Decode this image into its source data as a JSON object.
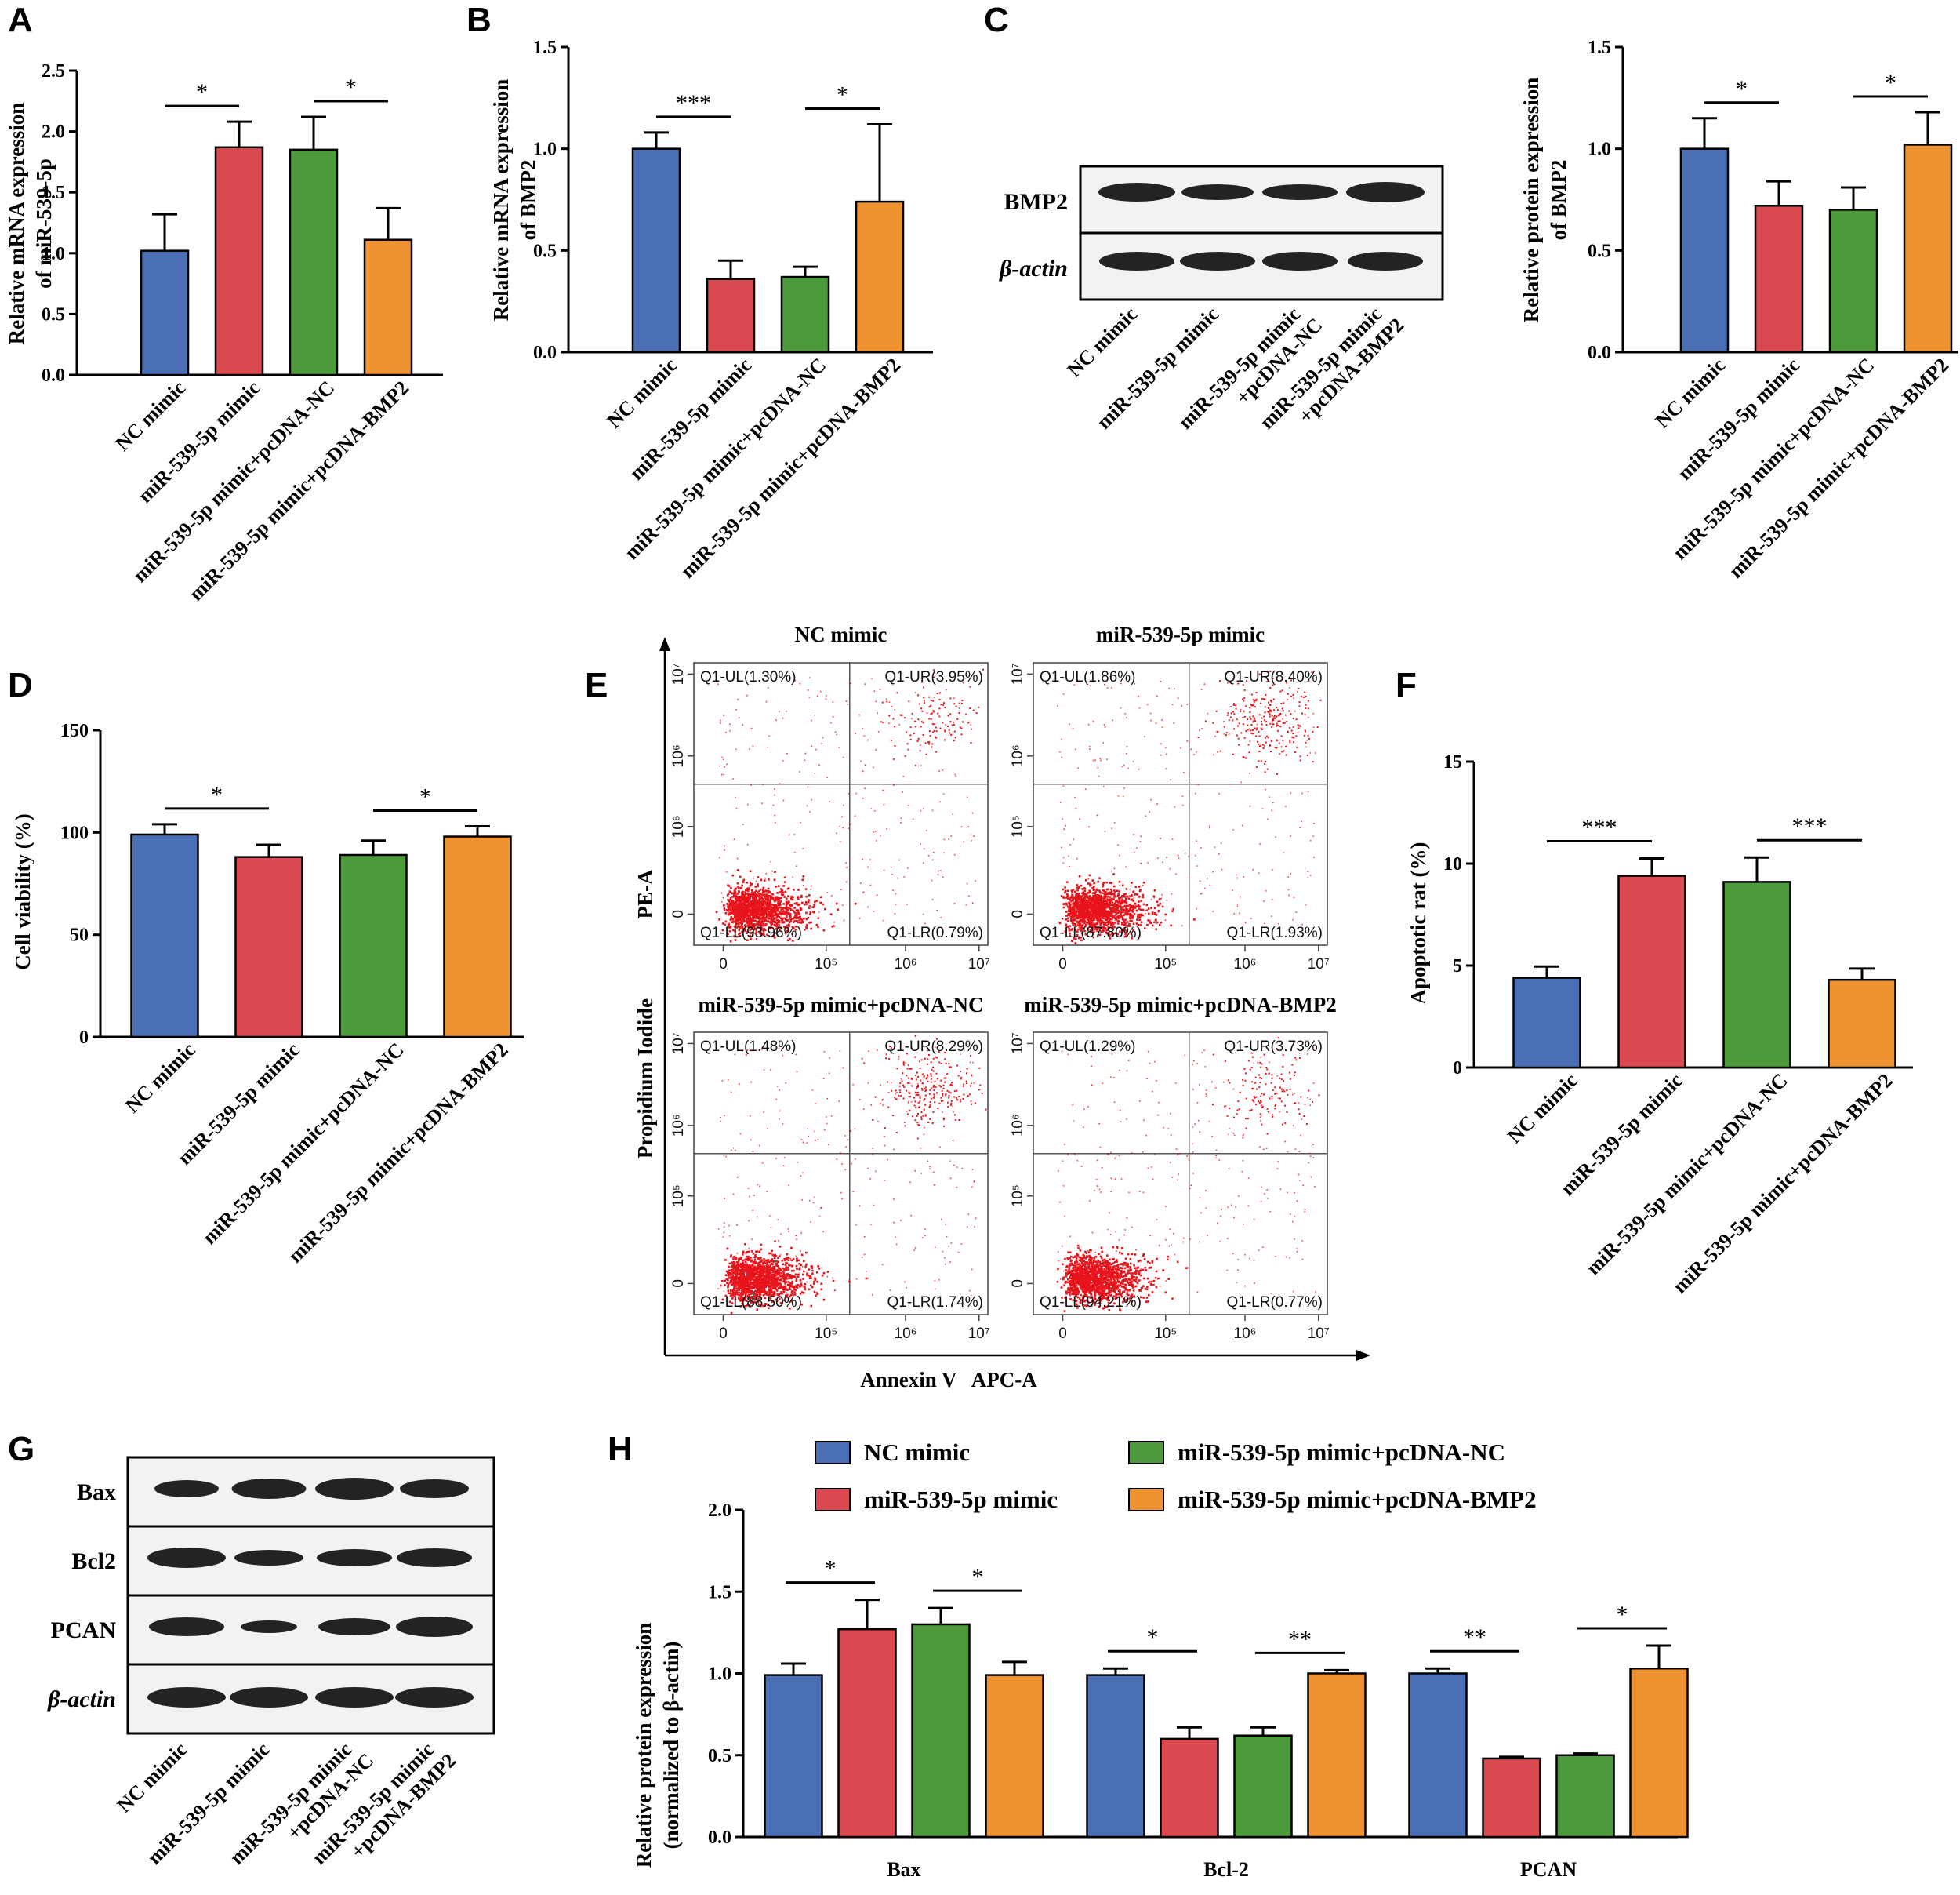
{
  "colors": {
    "blue": "#4a6fb5",
    "red": "#d9494f",
    "green": "#4c9a3c",
    "orange": "#ef9332",
    "dots": "#e8141c"
  },
  "panels": {
    "A": {
      "letter": "A",
      "ylabel_line1": "Relative mRNA expression",
      "ylabel_line2": "of miR-539-5p"
    },
    "B": {
      "letter": "B",
      "ylabel_line1": "Relative mRNA expression",
      "ylabel_line2": "of BMP2"
    },
    "C": {
      "letter": "C",
      "ylabel_line1": "Relative protein expression",
      "ylabel_line2": "of BMP2",
      "blot_labels": [
        "BMP2",
        "β-actin"
      ],
      "lane_labels": [
        "NC mimic",
        "miR-539-5p mimic",
        "miR-539-5p mimic",
        "+pcDNA-NC",
        "miR-539-5p mimic",
        "+pcDNA-BMP2"
      ]
    },
    "D": {
      "letter": "D",
      "ylabel": "Cell viability (%)"
    },
    "E": {
      "letter": "E",
      "ylabel_outer": "Propidium Iodide",
      "ylabel_inner": "PE-A",
      "xlabel": "Annexin V   APC-A"
    },
    "F": {
      "letter": "F",
      "ylabel": "Apoptotic rat (%)"
    },
    "G": {
      "letter": "G",
      "blot_labels": [
        "Bax",
        "Bcl2",
        "PCAN",
        "β-actin"
      ],
      "lane_labels": [
        "NC mimic",
        "miR-539-5p mimic",
        "miR-539-5p mimic",
        "+pcDNA-NC",
        "miR-539-5p mimic",
        "+pcDNA-BMP2"
      ]
    },
    "H": {
      "letter": "H",
      "ylabel_line1": "Relative protein expression",
      "ylabel_line2": "(normalized to β-actin)"
    }
  },
  "chart_data": [
    {
      "id": "A",
      "type": "bar",
      "categories": [
        "NC mimic",
        "miR-539-5p mimic",
        "miR-539-5p mimic+pcDNA-NC",
        "miR-539-5p mimic+pcDNA-BMP2"
      ],
      "values": [
        1.02,
        1.87,
        1.85,
        1.11
      ],
      "errors": [
        0.3,
        0.21,
        0.27,
        0.26
      ],
      "ylabel": "Relative mRNA expression of miR-539-5p",
      "ylim": [
        0,
        2.5
      ],
      "yticks": [
        "0.0",
        "0.5",
        "1.0",
        "1.5",
        "2.0",
        "2.5"
      ],
      "significance": [
        {
          "between": [
            0,
            1
          ],
          "label": "*"
        },
        {
          "between": [
            2,
            3
          ],
          "label": "*"
        }
      ]
    },
    {
      "id": "B",
      "type": "bar",
      "categories": [
        "NC mimic",
        "miR-539-5p mimic",
        "miR-539-5p mimic+pcDNA-NC",
        "miR-539-5p mimic+pcDNA-BMP2"
      ],
      "values": [
        1.0,
        0.36,
        0.37,
        0.74
      ],
      "errors": [
        0.08,
        0.09,
        0.05,
        0.38
      ],
      "ylabel": "Relative mRNA expression of BMP2",
      "ylim": [
        0,
        1.5
      ],
      "yticks": [
        "0.0",
        "0.5",
        "1.0",
        "1.5"
      ],
      "significance": [
        {
          "between": [
            0,
            1
          ],
          "label": "***"
        },
        {
          "between": [
            2,
            3
          ],
          "label": "*"
        }
      ]
    },
    {
      "id": "C",
      "type": "bar",
      "categories": [
        "NC mimic",
        "miR-539-5p mimic",
        "miR-539-5p mimic+pcDNA-NC",
        "miR-539-5p mimic+pcDNA-BMP2"
      ],
      "values": [
        1.0,
        0.72,
        0.7,
        1.02
      ],
      "errors": [
        0.15,
        0.12,
        0.11,
        0.16
      ],
      "ylabel": "Relative protein expression of BMP2",
      "ylim": [
        0,
        1.5
      ],
      "yticks": [
        "0.0",
        "0.5",
        "1.0",
        "1.5"
      ],
      "significance": [
        {
          "between": [
            0,
            1
          ],
          "label": "*"
        },
        {
          "between": [
            2,
            3
          ],
          "label": "*"
        }
      ]
    },
    {
      "id": "D",
      "type": "bar",
      "categories": [
        "NC mimic",
        "miR-539-5p mimic",
        "miR-539-5p mimic+pcDNA-NC",
        "miR-539-5p mimic+pcDNA-BMP2"
      ],
      "values": [
        99,
        88,
        89,
        98
      ],
      "errors": [
        5,
        6,
        7,
        5
      ],
      "ylabel": "Cell viability (%)",
      "ylim": [
        0,
        150
      ],
      "yticks": [
        "0",
        "50",
        "100",
        "150"
      ],
      "significance": [
        {
          "between": [
            0,
            1
          ],
          "label": "*"
        },
        {
          "between": [
            2,
            3
          ],
          "label": "*"
        }
      ]
    },
    {
      "id": "E",
      "type": "scatter",
      "title_groups": [
        "NC mimic",
        "miR-539-5p mimic",
        "miR-539-5p mimic+pcDNA-NC",
        "miR-539-5p mimic+pcDNA-BMP2"
      ],
      "xlabel": "Annexin V APC-A",
      "ylabel": "Propidium Iodide PE-A",
      "xticks": [
        "0",
        "10⁵",
        "10⁶",
        "10⁷"
      ],
      "yticks": [
        "0",
        "10⁵",
        "10⁶",
        "10⁷"
      ],
      "quadrants": [
        {
          "UL": "Q1-UL(1.30%)",
          "UR": "Q1-UR(3.95%)",
          "LL": "Q1-LL(93.96%)",
          "LR": "Q1-LR(0.79%)"
        },
        {
          "UL": "Q1-UL(1.86%)",
          "UR": "Q1-UR(8.40%)",
          "LL": "Q1-LL(87.80%)",
          "LR": "Q1-LR(1.93%)"
        },
        {
          "UL": "Q1-UL(1.48%)",
          "UR": "Q1-UR(8.29%)",
          "LL": "Q1-LL(88.50%)",
          "LR": "Q1-LR(1.74%)"
        },
        {
          "UL": "Q1-UL(1.29%)",
          "UR": "Q1-UR(3.73%)",
          "LL": "Q1-LL(94.21%)",
          "LR": "Q1-LR(0.77%)"
        }
      ]
    },
    {
      "id": "F",
      "type": "bar",
      "categories": [
        "NC mimic",
        "miR-539-5p mimic",
        "miR-539-5p mimic+pcDNA-NC",
        "miR-539-5p mimic+pcDNA-BMP2"
      ],
      "values": [
        4.4,
        9.4,
        9.1,
        4.3
      ],
      "errors": [
        0.55,
        0.85,
        1.2,
        0.55
      ],
      "ylabel": "Apoptotic rat (%)",
      "ylim": [
        0,
        15
      ],
      "yticks": [
        "0",
        "5",
        "10",
        "15"
      ],
      "significance": [
        {
          "between": [
            0,
            1
          ],
          "label": "***"
        },
        {
          "between": [
            2,
            3
          ],
          "label": "***"
        }
      ]
    },
    {
      "id": "H",
      "type": "bar",
      "categories": [
        "Bax",
        "Bcl-2",
        "PCAN"
      ],
      "series": [
        {
          "name": "NC mimic",
          "values": [
            0.99,
            0.99,
            1.0
          ],
          "errors": [
            0.07,
            0.04,
            0.03
          ]
        },
        {
          "name": "miR-539-5p mimic",
          "values": [
            1.27,
            0.6,
            0.48
          ],
          "errors": [
            0.18,
            0.07,
            0.01
          ]
        },
        {
          "name": "miR-539-5p mimic+pcDNA-NC",
          "values": [
            1.3,
            0.62,
            0.5
          ],
          "errors": [
            0.1,
            0.05,
            0.01
          ]
        },
        {
          "name": "miR-539-5p mimic+pcDNA-BMP2",
          "values": [
            0.99,
            1.0,
            1.03
          ],
          "errors": [
            0.08,
            0.02,
            0.14
          ]
        }
      ],
      "ylabel": "Relative protein expression (normalized to β-actin)",
      "ylim": [
        0,
        2.0
      ],
      "yticks": [
        "0.0",
        "0.5",
        "1.0",
        "1.5",
        "2.0"
      ],
      "legend": "top",
      "significance": [
        {
          "group": 0,
          "between": [
            0,
            1
          ],
          "label": "*"
        },
        {
          "group": 0,
          "between": [
            2,
            3
          ],
          "label": "*"
        },
        {
          "group": 1,
          "between": [
            0,
            1
          ],
          "label": "*"
        },
        {
          "group": 1,
          "between": [
            2,
            3
          ],
          "label": "**"
        },
        {
          "group": 2,
          "between": [
            0,
            1
          ],
          "label": "**"
        },
        {
          "group": 2,
          "between": [
            2,
            3
          ],
          "label": "*"
        }
      ]
    }
  ]
}
